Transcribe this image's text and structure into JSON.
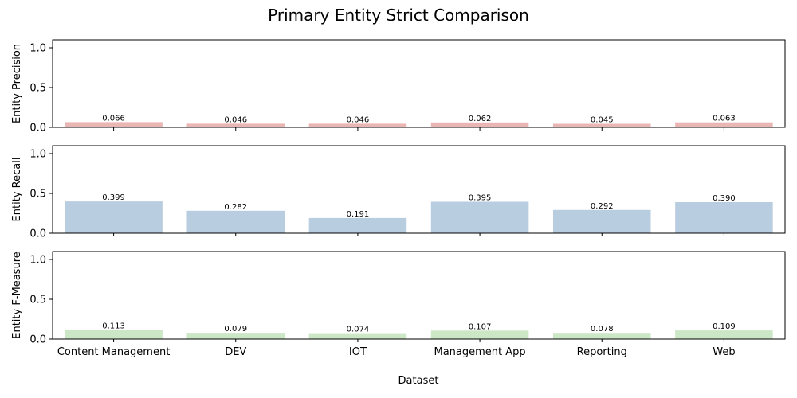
{
  "chart_data": {
    "type": "bar",
    "title": "Primary Entity Strict Comparison",
    "xlabel": "Dataset",
    "categories": [
      "Content Management",
      "DEV",
      "IOT",
      "Management App",
      "Reporting",
      "Web"
    ],
    "ylim": [
      0,
      1.1
    ],
    "yticks": [
      "0.0",
      "0.5",
      "1.0"
    ],
    "panels": [
      {
        "ylabel": "Entity Precision",
        "color": "#eab6b3",
        "values": [
          0.066,
          0.046,
          0.046,
          0.062,
          0.045,
          0.063
        ],
        "labels": [
          "0.066",
          "0.046",
          "0.046",
          "0.062",
          "0.045",
          "0.063"
        ]
      },
      {
        "ylabel": "Entity Recall",
        "color": "#b9cde0",
        "values": [
          0.399,
          0.282,
          0.191,
          0.395,
          0.292,
          0.39
        ],
        "labels": [
          "0.399",
          "0.282",
          "0.191",
          "0.395",
          "0.292",
          "0.390"
        ]
      },
      {
        "ylabel": "Entity F-Measure",
        "color": "#cce7c6",
        "values": [
          0.113,
          0.079,
          0.074,
          0.107,
          0.078,
          0.109
        ],
        "labels": [
          "0.113",
          "0.079",
          "0.074",
          "0.107",
          "0.078",
          "0.109"
        ]
      }
    ]
  }
}
